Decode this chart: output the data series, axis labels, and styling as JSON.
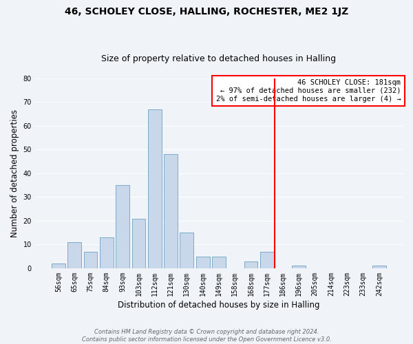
{
  "title": "46, SCHOLEY CLOSE, HALLING, ROCHESTER, ME2 1JZ",
  "subtitle": "Size of property relative to detached houses in Halling",
  "xlabel": "Distribution of detached houses by size in Halling",
  "ylabel": "Number of detached properties",
  "bar_labels": [
    "56sqm",
    "65sqm",
    "75sqm",
    "84sqm",
    "93sqm",
    "103sqm",
    "112sqm",
    "121sqm",
    "130sqm",
    "140sqm",
    "149sqm",
    "158sqm",
    "168sqm",
    "177sqm",
    "186sqm",
    "196sqm",
    "205sqm",
    "214sqm",
    "223sqm",
    "233sqm",
    "242sqm"
  ],
  "bar_values": [
    2,
    11,
    7,
    13,
    35,
    21,
    67,
    48,
    15,
    5,
    5,
    0,
    3,
    7,
    0,
    1,
    0,
    0,
    0,
    0,
    1
  ],
  "bar_color": "#c8d8ea",
  "bar_edgecolor": "#7aaac8",
  "vline_pos": 13.5,
  "vline_color": "red",
  "annotation_title": "46 SCHOLEY CLOSE: 181sqm",
  "annotation_line1": "← 97% of detached houses are smaller (232)",
  "annotation_line2": "2% of semi-detached houses are larger (4) →",
  "annotation_bbox_color": "white",
  "annotation_bbox_edgecolor": "red",
  "ylim": [
    0,
    80
  ],
  "yticks": [
    0,
    10,
    20,
    30,
    40,
    50,
    60,
    70,
    80
  ],
  "background_color": "#f0f4f8",
  "grid_color": "white",
  "footer_line1": "Contains HM Land Registry data © Crown copyright and database right 2024.",
  "footer_line2": "Contains public sector information licensed under the Open Government Licence v3.0.",
  "title_fontsize": 10,
  "subtitle_fontsize": 9,
  "xlabel_fontsize": 8.5,
  "ylabel_fontsize": 8.5,
  "tick_fontsize": 7,
  "annotation_fontsize": 7.5,
  "footer_fontsize": 6
}
